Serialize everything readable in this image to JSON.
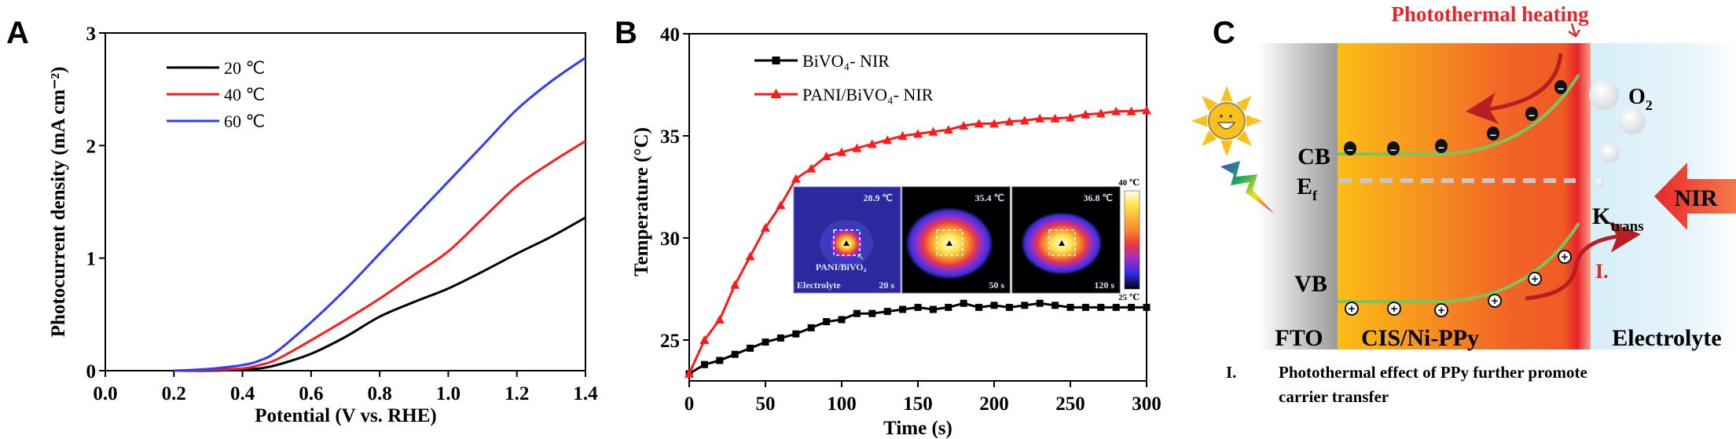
{
  "panels": {
    "a_label": "A",
    "b_label": "B",
    "c_label": "C"
  },
  "chart_data": [
    {
      "type": "line",
      "title": "",
      "xlabel": "Potential (V vs. RHE)",
      "ylabel": "Photocurrent density (mA cm⁻²)",
      "xlim": [
        0.0,
        1.4
      ],
      "ylim": [
        0,
        3
      ],
      "xticks": [
        "0.0",
        "0.2",
        "0.4",
        "0.6",
        "0.8",
        "1.0",
        "1.2",
        "1.4"
      ],
      "yticks": [
        "0",
        "1",
        "2",
        "3"
      ],
      "grid": false,
      "legend_position": "top-left",
      "x": [
        0.2,
        0.3,
        0.4,
        0.45,
        0.5,
        0.6,
        0.7,
        0.8,
        0.9,
        1.0,
        1.1,
        1.2,
        1.3,
        1.4
      ],
      "series": [
        {
          "name": "20 ℃",
          "color": "#000000",
          "values": [
            0,
            0,
            0.01,
            0.02,
            0.05,
            0.15,
            0.3,
            0.48,
            0.61,
            0.73,
            0.88,
            1.04,
            1.19,
            1.36
          ]
        },
        {
          "name": "40 ℃",
          "color": "#ff1a1a",
          "values": [
            0,
            0.005,
            0.02,
            0.05,
            0.1,
            0.27,
            0.45,
            0.64,
            0.85,
            1.06,
            1.35,
            1.64,
            1.85,
            2.04
          ]
        },
        {
          "name": "60 ℃",
          "color": "#2f3bff",
          "values": [
            0,
            0.015,
            0.05,
            0.09,
            0.17,
            0.43,
            0.72,
            1.04,
            1.36,
            1.68,
            2.0,
            2.32,
            2.57,
            2.78
          ]
        }
      ]
    },
    {
      "type": "line",
      "title": "",
      "xlabel": "Time (s)",
      "ylabel": "Temperature (°C)",
      "xlim": [
        0,
        300
      ],
      "ylim": [
        23,
        40
      ],
      "xticks": [
        "0",
        "50",
        "100",
        "150",
        "200",
        "250",
        "300"
      ],
      "yticks": [
        "25",
        "30",
        "35",
        "40"
      ],
      "grid": false,
      "legend_position": "top-left",
      "x": [
        0,
        10,
        20,
        30,
        40,
        50,
        60,
        70,
        80,
        90,
        100,
        110,
        120,
        130,
        140,
        150,
        160,
        170,
        180,
        190,
        200,
        210,
        220,
        230,
        240,
        250,
        260,
        270,
        280,
        290,
        300
      ],
      "series": [
        {
          "name": "BiVO₄- NIR",
          "color": "#000000",
          "marker": "square",
          "values": [
            23.35,
            23.8,
            24.0,
            24.3,
            24.6,
            24.9,
            25.1,
            25.3,
            25.6,
            25.9,
            26.0,
            26.3,
            26.3,
            26.4,
            26.5,
            26.6,
            26.5,
            26.6,
            26.8,
            26.6,
            26.7,
            26.6,
            26.7,
            26.8,
            26.7,
            26.6,
            26.6,
            26.6,
            26.6,
            26.6,
            26.6
          ]
        },
        {
          "name": "PANI/BiVO₄- NIR",
          "color": "#ff1a1a",
          "marker": "triangle",
          "values": [
            23.35,
            25.0,
            26.0,
            27.7,
            29.1,
            30.5,
            31.6,
            32.9,
            33.4,
            34.0,
            34.2,
            34.4,
            34.6,
            34.8,
            35.0,
            35.1,
            35.2,
            35.3,
            35.5,
            35.6,
            35.6,
            35.7,
            35.75,
            35.85,
            35.85,
            35.9,
            36.05,
            36.1,
            36.2,
            36.2,
            36.25
          ]
        }
      ],
      "inset": {
        "frames": [
          {
            "temp": "28.9 ℃",
            "time": "20 s",
            "sample_label": "PANI/BiVO₄",
            "medium_label": "Electrolyte"
          },
          {
            "temp": "35.4 ℃",
            "time": "50 s"
          },
          {
            "temp": "36.8 ℃",
            "time": "120 s"
          }
        ],
        "colorbar_max": "40 ℃",
        "colorbar_min": "25 ℃"
      }
    }
  ],
  "diagram": {
    "title": "Photothermal heating",
    "cb": "CB",
    "ef_main": "E",
    "ef_sub": "f",
    "vb": "VB",
    "fto": "FTO",
    "absorber": "CIS/Ni-PPy",
    "electrolyte": "Electrolyte",
    "o2_main": "O",
    "o2_sub": "2",
    "nir": "NIR",
    "ktrans_main": "K",
    "ktrans_sub": "trans",
    "step_marker": "I.",
    "electron_symbol": "−",
    "hole_symbol": "+",
    "caption_marker": "I.",
    "caption_line1": "Photothermal effect of PPy further promote",
    "caption_line2": "carrier transfer",
    "colors": {
      "heat": "#e8262a",
      "band": "#7cc55a",
      "fto": "#a6a6a6",
      "absorber_left": "#fbb817",
      "absorber_right": "#f15a24",
      "electrolyte": "#dcf0f8"
    }
  }
}
